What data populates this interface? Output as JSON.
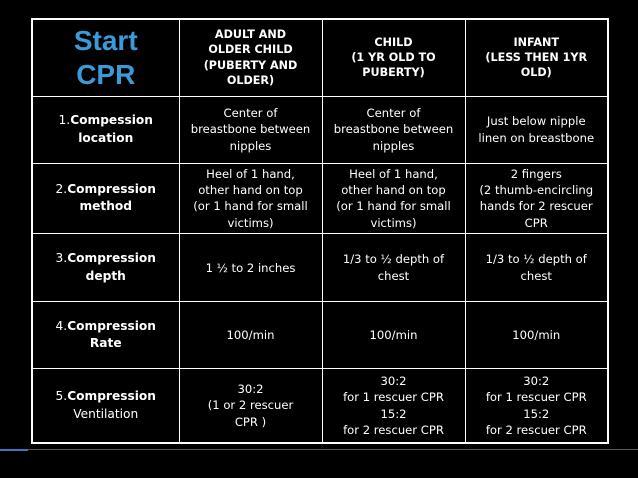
{
  "title": {
    "line1": "Start",
    "line2": "CPR"
  },
  "columns": [
    {
      "lines": [
        "ADULT AND",
        "OLDER CHILD",
        "(PUBERTY AND",
        "OLDER)"
      ]
    },
    {
      "lines": [
        "CHILD",
        "(1 YR OLD TO",
        "PUBERTY)"
      ]
    },
    {
      "lines": [
        "INFANT",
        "(LESS THEN 1YR",
        "OLD)"
      ]
    }
  ],
  "rows": [
    {
      "number": "1.",
      "name_line1": "Compession",
      "name_line2": "location",
      "cells": [
        {
          "lines": [
            "Center of",
            "breastbone between",
            "nipples"
          ]
        },
        {
          "lines": [
            "Center of",
            "breastbone between",
            "nipples"
          ]
        },
        {
          "lines": [
            "Just below nipple",
            "linen on breastbone"
          ]
        }
      ]
    },
    {
      "number": "2.",
      "name_line1": "Compression",
      "name_line2": "method",
      "cells": [
        {
          "lines": [
            "Heel of 1 hand,",
            "other hand on top",
            "(or 1 hand for small",
            "victims)"
          ]
        },
        {
          "lines": [
            "Heel of 1 hand,",
            "other hand on top",
            "(or 1 hand for small",
            "victims)"
          ]
        },
        {
          "lines": [
            "2 fingers",
            "(2 thumb-encircling",
            "hands for 2 rescuer",
            "CPR"
          ]
        }
      ]
    },
    {
      "number": "3.",
      "name_line1": "Compression",
      "name_line2": "depth",
      "cells": [
        {
          "lines": [
            "1 ½ to 2 inches"
          ]
        },
        {
          "lines": [
            "1/3 to ½ depth of",
            "chest"
          ]
        },
        {
          "lines": [
            "1/3 to ½ depth of",
            "chest"
          ]
        }
      ]
    },
    {
      "number": "4.",
      "name_line1": "Compression",
      "name_line2": "Rate",
      "cells": [
        {
          "lines": [
            "100/min"
          ]
        },
        {
          "lines": [
            "100/min"
          ]
        },
        {
          "lines": [
            "100/min"
          ]
        }
      ]
    },
    {
      "number": "5.",
      "name_line1": "Compression",
      "name_line2": "Ventilation",
      "cells": [
        {
          "lines": [
            "30:2",
            "(1 or 2 rescuer",
            "CPR )"
          ]
        },
        {
          "lines": [
            "30:2",
            "for 1 rescuer CPR",
            "15:2",
            "for 2 rescuer CPR"
          ]
        },
        {
          "lines": [
            "30:2",
            "for 1 rescuer CPR",
            "15:2",
            "for 2 rescuer CPR"
          ]
        }
      ]
    }
  ],
  "colors": {
    "background": "#000000",
    "text": "#ffffff",
    "title": "#3a9bd8",
    "accent": "#3a78c0"
  }
}
